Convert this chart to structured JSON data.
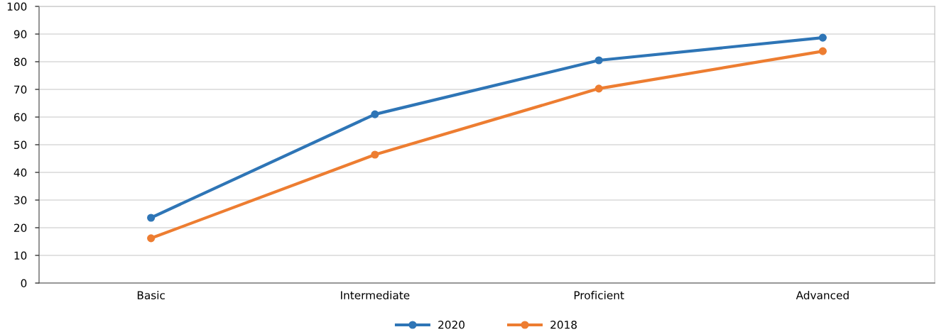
{
  "chart_data": {
    "type": "line",
    "categories": [
      "Basic",
      "Intermediate",
      "Proficient",
      "Advanced"
    ],
    "series": [
      {
        "name": "2020",
        "color": "#2e75b6",
        "values": [
          23.6,
          61.0,
          80.5,
          88.7
        ]
      },
      {
        "name": "2018",
        "color": "#ed7d31",
        "values": [
          16.2,
          46.4,
          70.3,
          83.8
        ]
      }
    ],
    "ylim": [
      0,
      100
    ],
    "yticks": [
      0,
      10,
      20,
      30,
      40,
      50,
      60,
      70,
      80,
      90,
      100
    ],
    "grid": "y",
    "legend": "bottom",
    "marker": "circle",
    "line_style": "solid"
  }
}
